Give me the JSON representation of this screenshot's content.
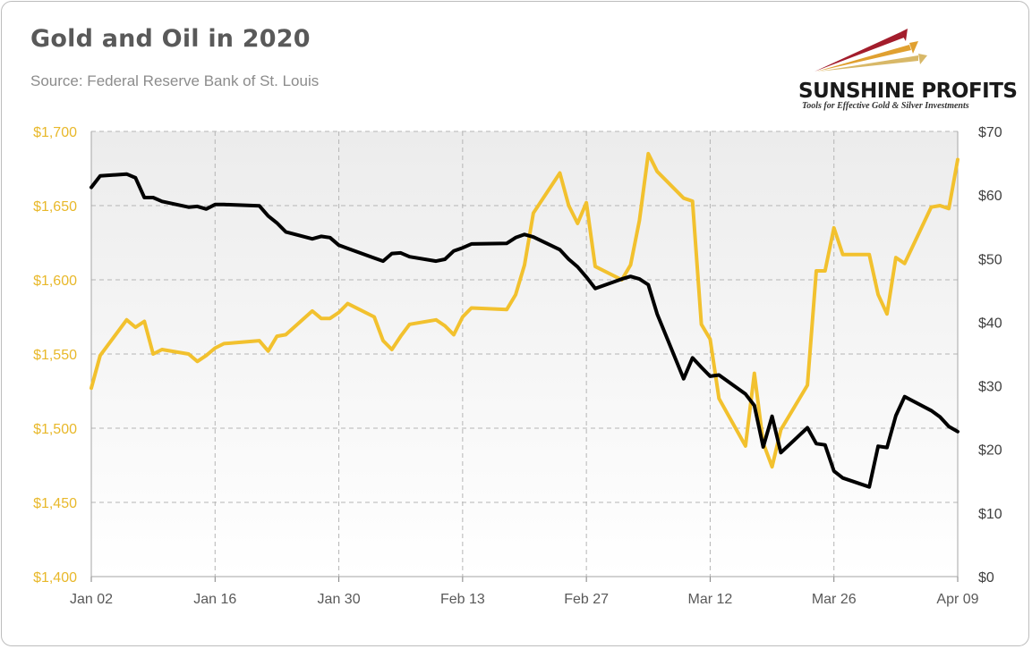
{
  "title": "Gold and Oil in 2020",
  "subtitle": "Source: Federal Reserve Bank of St. Louis",
  "logo": {
    "name": "SUNSHINE PROFITS",
    "tagline": "Tools for Effective Gold & Silver Investments"
  },
  "colors": {
    "gold": "#f2c12e",
    "oil": "#000000",
    "left_axis_text": "#e8b82a",
    "grid": "#b5b5b5"
  },
  "chart_data": {
    "type": "line",
    "title": "Gold and Oil in 2020",
    "x_axis": {
      "tick_labels": [
        "Jan 02",
        "Jan 16",
        "Jan 30",
        "Feb 13",
        "Feb 27",
        "Mar 12",
        "Mar 26",
        "Apr 09"
      ],
      "range": [
        "2020-01-02",
        "2020-04-09"
      ]
    },
    "y_left": {
      "range": [
        1400,
        1700
      ],
      "ticks": [
        1400,
        1450,
        1500,
        1550,
        1600,
        1650,
        1700
      ],
      "tick_labels": [
        "$1,400",
        "$1,450",
        "$1,500",
        "$1,550",
        "$1,600",
        "$1,650",
        "$1,700"
      ]
    },
    "y_right": {
      "range": [
        0,
        70
      ],
      "ticks": [
        0,
        10,
        20,
        30,
        40,
        50,
        60,
        70
      ],
      "tick_labels": [
        "$0",
        "$10",
        "$20",
        "$30",
        "$40",
        "$50",
        "$60",
        "$70"
      ]
    },
    "grid": true,
    "series": [
      {
        "axis": "left",
        "color": "#f2c12e",
        "x": [
          "2020-01-02",
          "2020-01-03",
          "2020-01-06",
          "2020-01-07",
          "2020-01-08",
          "2020-01-09",
          "2020-01-10",
          "2020-01-13",
          "2020-01-14",
          "2020-01-15",
          "2020-01-16",
          "2020-01-17",
          "2020-01-21",
          "2020-01-22",
          "2020-01-23",
          "2020-01-24",
          "2020-01-27",
          "2020-01-28",
          "2020-01-29",
          "2020-01-30",
          "2020-01-31",
          "2020-02-03",
          "2020-02-04",
          "2020-02-05",
          "2020-02-06",
          "2020-02-07",
          "2020-02-10",
          "2020-02-11",
          "2020-02-12",
          "2020-02-13",
          "2020-02-14",
          "2020-02-18",
          "2020-02-19",
          "2020-02-20",
          "2020-02-21",
          "2020-02-24",
          "2020-02-25",
          "2020-02-26",
          "2020-02-27",
          "2020-02-28",
          "2020-03-02",
          "2020-03-03",
          "2020-03-04",
          "2020-03-05",
          "2020-03-06",
          "2020-03-09",
          "2020-03-10",
          "2020-03-11",
          "2020-03-12",
          "2020-03-13",
          "2020-03-16",
          "2020-03-17",
          "2020-03-18",
          "2020-03-19",
          "2020-03-20",
          "2020-03-23",
          "2020-03-24",
          "2020-03-25",
          "2020-03-26",
          "2020-03-27",
          "2020-03-30",
          "2020-03-31",
          "2020-04-01",
          "2020-04-02",
          "2020-04-03",
          "2020-04-06",
          "2020-04-07",
          "2020-04-08",
          "2020-04-09"
        ],
        "values": [
          1527,
          1549,
          1573,
          1568,
          1572,
          1550,
          1553,
          1550,
          1545,
          1549,
          1554,
          1557,
          1559,
          1552,
          1562,
          1563,
          1579,
          1574,
          1574,
          1578,
          1584,
          1575,
          1559,
          1553,
          1562,
          1570,
          1573,
          1569,
          1563,
          1575,
          1581,
          1580,
          1590,
          1610,
          1645,
          1672,
          1650,
          1638,
          1652,
          1609,
          1600,
          1610,
          1640,
          1685,
          1673,
          1655,
          1653,
          1570,
          1560,
          1520,
          1488,
          1537,
          1490,
          1474,
          1499,
          1529,
          1606,
          1606,
          1635,
          1617,
          1617,
          1590,
          1577,
          1615,
          1611,
          1649,
          1650,
          1648,
          1681
        ]
      },
      {
        "axis": "right",
        "color": "#000000",
        "x": [
          "2020-01-02",
          "2020-01-03",
          "2020-01-06",
          "2020-01-07",
          "2020-01-08",
          "2020-01-09",
          "2020-01-10",
          "2020-01-13",
          "2020-01-14",
          "2020-01-15",
          "2020-01-16",
          "2020-01-17",
          "2020-01-21",
          "2020-01-22",
          "2020-01-23",
          "2020-01-24",
          "2020-01-27",
          "2020-01-28",
          "2020-01-29",
          "2020-01-30",
          "2020-01-31",
          "2020-02-03",
          "2020-02-04",
          "2020-02-05",
          "2020-02-06",
          "2020-02-07",
          "2020-02-10",
          "2020-02-11",
          "2020-02-12",
          "2020-02-13",
          "2020-02-14",
          "2020-02-18",
          "2020-02-19",
          "2020-02-20",
          "2020-02-21",
          "2020-02-24",
          "2020-02-25",
          "2020-02-26",
          "2020-02-27",
          "2020-02-28",
          "2020-03-02",
          "2020-03-03",
          "2020-03-04",
          "2020-03-05",
          "2020-03-06",
          "2020-03-09",
          "2020-03-10",
          "2020-03-11",
          "2020-03-12",
          "2020-03-13",
          "2020-03-16",
          "2020-03-17",
          "2020-03-18",
          "2020-03-19",
          "2020-03-20",
          "2020-03-23",
          "2020-03-24",
          "2020-03-25",
          "2020-03-26",
          "2020-03-27",
          "2020-03-30",
          "2020-03-31",
          "2020-04-01",
          "2020-04-02",
          "2020-04-03",
          "2020-04-06",
          "2020-04-07",
          "2020-04-08",
          "2020-04-09"
        ],
        "values": [
          61.2,
          63.0,
          63.3,
          62.7,
          59.6,
          59.6,
          59.0,
          58.1,
          58.2,
          57.8,
          58.5,
          58.5,
          58.3,
          56.7,
          55.6,
          54.2,
          53.1,
          53.5,
          53.3,
          52.1,
          51.6,
          50.1,
          49.6,
          50.8,
          50.9,
          50.3,
          49.6,
          49.9,
          51.2,
          51.7,
          52.3,
          52.4,
          53.3,
          53.8,
          53.4,
          51.4,
          49.9,
          48.7,
          47.1,
          45.3,
          46.8,
          47.2,
          46.8,
          45.9,
          41.3,
          31.1,
          34.4,
          32.9,
          31.5,
          31.7,
          28.7,
          26.9,
          20.4,
          25.2,
          19.5,
          23.4,
          20.9,
          20.7,
          16.6,
          15.5,
          14.1,
          20.5,
          20.3,
          25.3,
          28.3,
          26.1,
          25.1,
          23.6,
          22.8
        ]
      }
    ]
  }
}
